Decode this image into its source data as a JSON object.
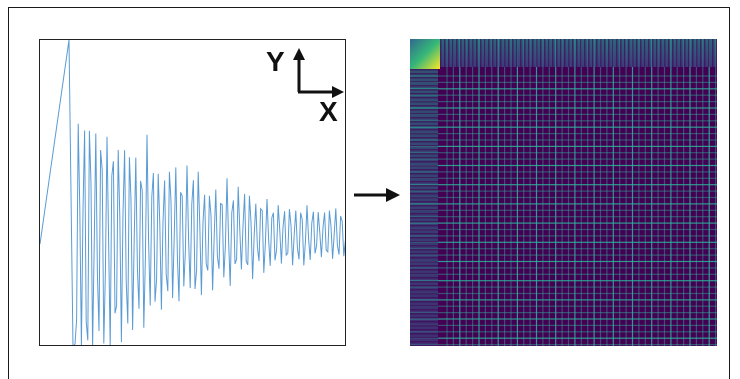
{
  "diagram": {
    "axes_indicator": {
      "y_label": "Y",
      "x_label": "X"
    },
    "arrow": {
      "direction": "right"
    },
    "signal": {
      "line_color": "#5a9bd4",
      "description_free": true
    },
    "matrix": {
      "colormap": "viridis",
      "background_color": "#440154",
      "stripe_color": "#2db39a",
      "highlight_color": "#fde725",
      "grid_lines": 48
    }
  }
}
